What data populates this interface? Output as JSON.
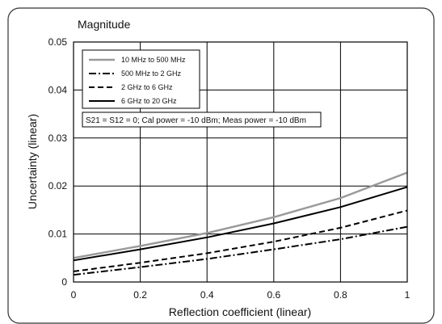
{
  "chart_data": {
    "type": "line",
    "title": "Magnitude",
    "xlabel": "Reflection coefficient (linear)",
    "ylabel": "Uncertainty (linear)",
    "xlim": [
      0,
      1
    ],
    "ylim": [
      0,
      0.05
    ],
    "x_ticks": [
      "0",
      "0.2",
      "0.4",
      "0.6",
      "0.8",
      "1"
    ],
    "y_ticks": [
      "0",
      "0.01",
      "0.02",
      "0.03",
      "0.04",
      "0.05"
    ],
    "grid": true,
    "legend_position": "top-left",
    "annotation": "S21 = S12 = 0; Cal power = -10 dBm; Meas power = -10 dBm",
    "x": [
      0,
      0.2,
      0.4,
      0.6,
      0.8,
      1.0
    ],
    "series": [
      {
        "name": "10 MHz to 500 MHz",
        "style": "solid",
        "color": "#999999",
        "values": [
          0.005,
          0.0075,
          0.0102,
          0.0135,
          0.0175,
          0.0228
        ]
      },
      {
        "name": "500 MHz to 2 GHz",
        "style": "dashdot",
        "color": "#000000",
        "values": [
          0.0015,
          0.0031,
          0.0048,
          0.0068,
          0.0089,
          0.0115
        ]
      },
      {
        "name": "2 GHz to 6 GHz",
        "style": "dashed",
        "color": "#000000",
        "values": [
          0.0022,
          0.004,
          0.006,
          0.0084,
          0.0113,
          0.0149
        ]
      },
      {
        "name": "6 GHz to 20 GHz",
        "style": "solid",
        "color": "#000000",
        "values": [
          0.0045,
          0.0068,
          0.0093,
          0.0122,
          0.0156,
          0.0198
        ]
      }
    ]
  }
}
